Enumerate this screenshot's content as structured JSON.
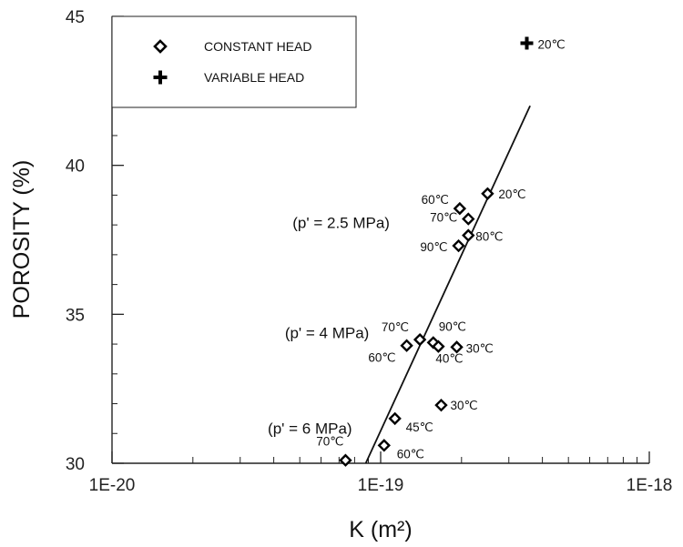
{
  "chart_data": {
    "type": "scatter",
    "xlabel": "K (m²)",
    "ylabel": "POROSITY (%)",
    "x_scale": "log",
    "xlim": [
      1e-20,
      1e-18
    ],
    "ylim": [
      30,
      45
    ],
    "x_ticks": [
      1e-20,
      1e-19,
      1e-18
    ],
    "x_tick_labels": [
      "1E-20",
      "1E-19",
      "1E-18"
    ],
    "y_ticks": [
      30,
      35,
      40,
      45
    ],
    "y_tick_labels": [
      "30",
      "35",
      "40",
      "45"
    ],
    "grid": false,
    "legend_position": "top-left",
    "series": [
      {
        "name": "CONSTANT HEAD",
        "marker": "diamond",
        "points": [
          {
            "x": 2.5e-19,
            "y": 39.05,
            "label": "20℃"
          },
          {
            "x": 1.97e-19,
            "y": 38.55,
            "label": "60℃"
          },
          {
            "x": 2.12e-19,
            "y": 38.2,
            "label": "70℃"
          },
          {
            "x": 2.12e-19,
            "y": 37.65,
            "label": "80℃"
          },
          {
            "x": 1.95e-19,
            "y": 37.3,
            "label": "90℃"
          },
          {
            "x": 1.4e-19,
            "y": 34.15,
            "label": "70℃"
          },
          {
            "x": 1.57e-19,
            "y": 34.05,
            "label": "90℃"
          },
          {
            "x": 1.25e-19,
            "y": 33.95,
            "label": "60℃"
          },
          {
            "x": 1.64e-19,
            "y": 33.92,
            "label": "40℃"
          },
          {
            "x": 1.92e-19,
            "y": 33.9,
            "label": "30℃"
          },
          {
            "x": 1.68e-19,
            "y": 31.95,
            "label": "30℃"
          },
          {
            "x": 1.13e-19,
            "y": 31.5,
            "label": "45℃"
          },
          {
            "x": 1.03e-19,
            "y": 30.6,
            "label": "60℃"
          },
          {
            "x": 7.4e-20,
            "y": 30.1,
            "label": "70℃"
          }
        ]
      },
      {
        "name": "VARIABLE HEAD",
        "marker": "cross",
        "points": [
          {
            "x": 3.5e-19,
            "y": 44.1,
            "label": "20℃"
          }
        ]
      }
    ],
    "trend_line": {
      "points": [
        {
          "x": 8.8e-20,
          "y": 30
        },
        {
          "x": 3.6e-19,
          "y": 42
        }
      ]
    },
    "annotations": [
      {
        "text": "(p' = 2.5 MPa)",
        "x": 4.7e-20,
        "y": 37.9
      },
      {
        "text": "(p' = 4 MPa)",
        "x": 4.4e-20,
        "y": 34.2
      },
      {
        "text": "(p' = 6 MPa)",
        "x": 3.8e-20,
        "y": 31.0
      }
    ],
    "colors": {
      "marker": "#000000",
      "line": "#111111",
      "axis": "#222222"
    }
  }
}
